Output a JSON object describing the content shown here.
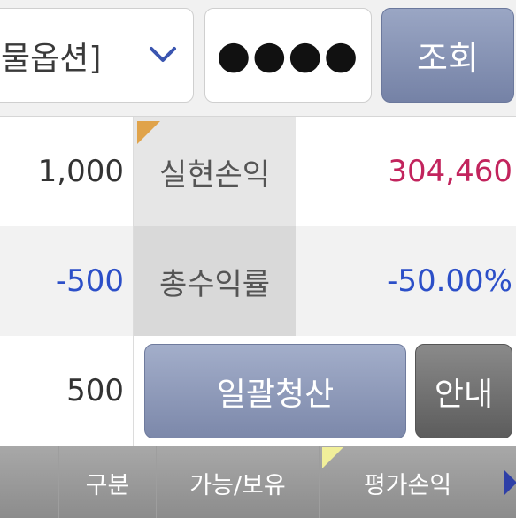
{
  "topbar": {
    "select_label": "물옵션]",
    "password_mask": "●●●●",
    "query_label": "조회"
  },
  "rows": [
    {
      "left_value": "1,000",
      "label": "실현손익",
      "right_value": "304,460"
    },
    {
      "left_value": "-500",
      "label": "총수익률",
      "right_value": "-50.00%"
    },
    {
      "left_value": "500"
    }
  ],
  "actions": {
    "bulk_liquidate": "일괄청산",
    "guide": "안내"
  },
  "table_header": {
    "col1": "구분",
    "col2": "가능/보유",
    "col3": "평가손익"
  },
  "colors": {
    "positive": "#c2245d",
    "negative": "#2c4fc8",
    "accent_button": "#8591b4"
  },
  "icons": {
    "dropdown": "chevron-down-icon",
    "scroll_right": "arrow-right-icon"
  }
}
